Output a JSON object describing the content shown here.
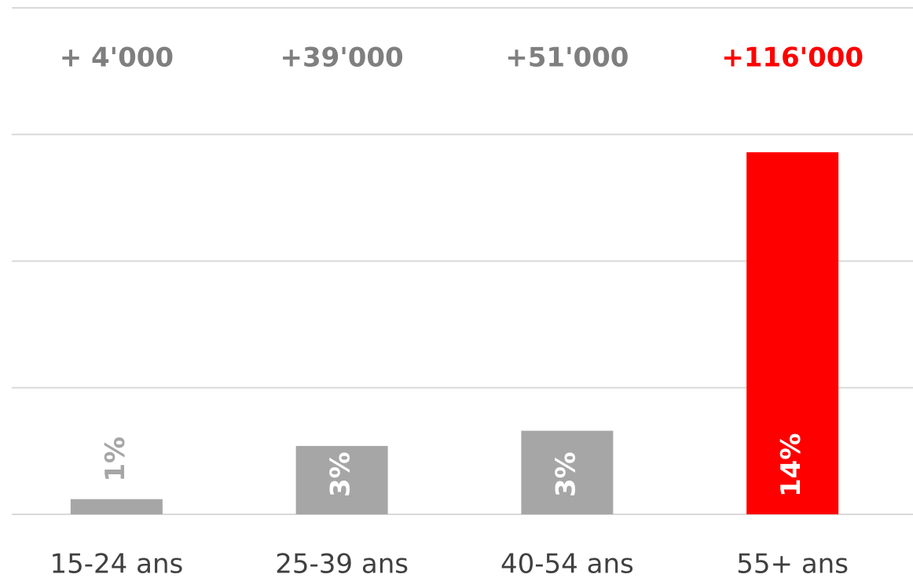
{
  "chart_data": {
    "type": "bar",
    "categories": [
      "15-24 ans",
      "25-39 ans",
      "40-54 ans",
      "55+ ans"
    ],
    "values": [
      0.6,
      2.7,
      3.3,
      14.3
    ],
    "value_labels": [
      "1%",
      "3%",
      "3%",
      "14%"
    ],
    "colors": [
      "#a6a6a6",
      "#a6a6a6",
      "#a6a6a6",
      "#ff0000"
    ],
    "annotations": [
      "+ 4'000",
      "+39'000",
      "+51'000",
      "+116'000"
    ],
    "annotation_colors": [
      "#7f7f7f",
      "#7f7f7f",
      "#7f7f7f",
      "#ff0000"
    ],
    "ylim": [
      0,
      20
    ],
    "yticks": [
      0,
      5,
      10,
      15,
      20
    ],
    "grid": true
  }
}
